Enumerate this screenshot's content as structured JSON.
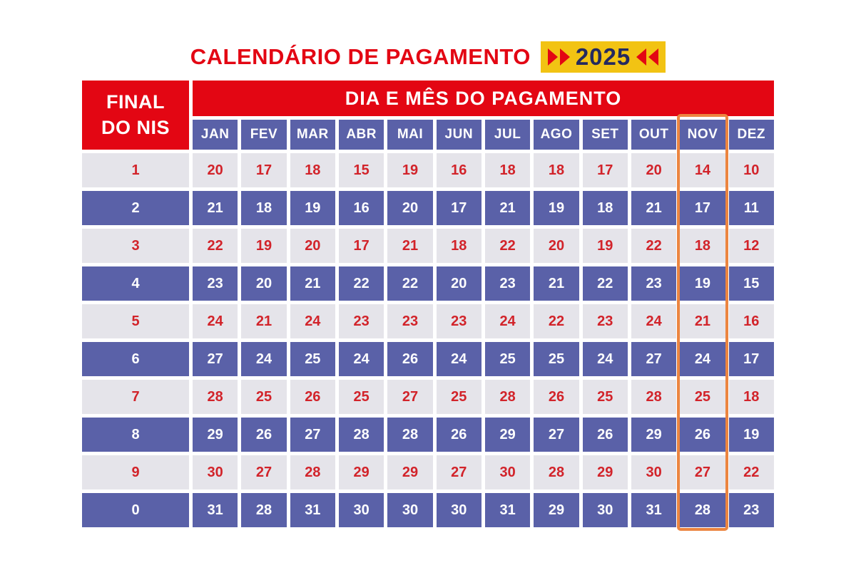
{
  "title": "CALENDÁRIO DE PAGAMENTO",
  "year_badge": "2025",
  "table": {
    "corner_line1": "FINAL",
    "corner_line2": "DO NIS",
    "main_header": "DIA E MÊS DO PAGAMENTO",
    "months": [
      "JAN",
      "FEV",
      "MAR",
      "ABR",
      "MAI",
      "JUN",
      "JUL",
      "AGO",
      "SET",
      "OUT",
      "NOV",
      "DEZ"
    ],
    "highlighted_month": "NOV",
    "rows": [
      {
        "final": "1",
        "days": [
          "20",
          "17",
          "18",
          "15",
          "19",
          "16",
          "18",
          "18",
          "17",
          "20",
          "14",
          "10"
        ]
      },
      {
        "final": "2",
        "days": [
          "21",
          "18",
          "19",
          "16",
          "20",
          "17",
          "21",
          "19",
          "18",
          "21",
          "17",
          "11"
        ]
      },
      {
        "final": "3",
        "days": [
          "22",
          "19",
          "20",
          "17",
          "21",
          "18",
          "22",
          "20",
          "19",
          "22",
          "18",
          "12"
        ]
      },
      {
        "final": "4",
        "days": [
          "23",
          "20",
          "21",
          "22",
          "22",
          "20",
          "23",
          "21",
          "22",
          "23",
          "19",
          "15"
        ]
      },
      {
        "final": "5",
        "days": [
          "24",
          "21",
          "24",
          "23",
          "23",
          "23",
          "24",
          "22",
          "23",
          "24",
          "21",
          "16"
        ]
      },
      {
        "final": "6",
        "days": [
          "27",
          "24",
          "25",
          "24",
          "26",
          "24",
          "25",
          "25",
          "24",
          "27",
          "24",
          "17"
        ]
      },
      {
        "final": "7",
        "days": [
          "28",
          "25",
          "26",
          "25",
          "27",
          "25",
          "28",
          "26",
          "25",
          "28",
          "25",
          "18"
        ]
      },
      {
        "final": "8",
        "days": [
          "29",
          "26",
          "27",
          "28",
          "28",
          "26",
          "29",
          "27",
          "26",
          "29",
          "26",
          "19"
        ]
      },
      {
        "final": "9",
        "days": [
          "30",
          "27",
          "28",
          "29",
          "29",
          "27",
          "30",
          "28",
          "29",
          "30",
          "27",
          "22"
        ]
      },
      {
        "final": "0",
        "days": [
          "31",
          "28",
          "31",
          "30",
          "30",
          "30",
          "31",
          "29",
          "30",
          "31",
          "28",
          "23"
        ]
      }
    ]
  },
  "chart_data": {
    "type": "table",
    "title": "CALENDÁRIO DE PAGAMENTO 2025",
    "columns": [
      "FINAL DO NIS",
      "JAN",
      "FEV",
      "MAR",
      "ABR",
      "MAI",
      "JUN",
      "JUL",
      "AGO",
      "SET",
      "OUT",
      "NOV",
      "DEZ"
    ],
    "rows": [
      [
        "1",
        20,
        17,
        18,
        15,
        19,
        16,
        18,
        18,
        17,
        20,
        14,
        10
      ],
      [
        "2",
        21,
        18,
        19,
        16,
        20,
        17,
        21,
        19,
        18,
        21,
        17,
        11
      ],
      [
        "3",
        22,
        19,
        20,
        17,
        21,
        18,
        22,
        20,
        19,
        22,
        18,
        12
      ],
      [
        "4",
        23,
        20,
        21,
        22,
        22,
        20,
        23,
        21,
        22,
        23,
        19,
        15
      ],
      [
        "5",
        24,
        21,
        24,
        23,
        23,
        23,
        24,
        22,
        23,
        24,
        21,
        16
      ],
      [
        "6",
        27,
        24,
        25,
        24,
        26,
        24,
        25,
        25,
        24,
        27,
        24,
        17
      ],
      [
        "7",
        28,
        25,
        26,
        25,
        27,
        25,
        28,
        26,
        25,
        28,
        25,
        18
      ],
      [
        "8",
        29,
        26,
        27,
        28,
        28,
        26,
        29,
        27,
        26,
        29,
        26,
        19
      ],
      [
        "9",
        30,
        27,
        28,
        29,
        29,
        27,
        30,
        28,
        29,
        30,
        27,
        22
      ],
      [
        "0",
        31,
        28,
        31,
        30,
        30,
        30,
        31,
        29,
        30,
        31,
        28,
        23
      ]
    ],
    "highlighted_column": "NOV",
    "legend_position": "none",
    "grid": false
  },
  "colors": {
    "header_red": "#e30613",
    "cell_blue": "#5a61a8",
    "cell_light_gray": "#e5e4ea",
    "number_red": "#d2232a",
    "highlight_orange": "#ec8540",
    "badge_yellow": "#f2c313",
    "badge_navy": "#24295f"
  }
}
